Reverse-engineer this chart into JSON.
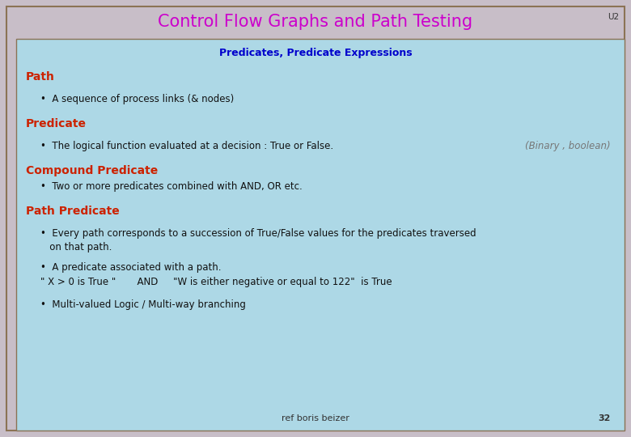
{
  "title": "Control Flow Graphs and Path Testing",
  "title_color": "#cc00cc",
  "title_fontsize": 15,
  "u2_label": "U2",
  "subtitle": "Predicates, Predicate Expressions",
  "subtitle_color": "#0000cc",
  "subtitle_fontsize": 9,
  "outer_bg": "#c8bec8",
  "inner_bg": "#add8e6",
  "border_color": "#8b7355",
  "header_bg": "#c8bec8",
  "sections": [
    {
      "heading": "Path",
      "heading_color": "#cc2200",
      "heading_fontsize": 10,
      "bullets": [
        {
          "text": "A sequence of process links (& nodes)",
          "right_text": "",
          "right_color": ""
        }
      ]
    },
    {
      "heading": "Predicate",
      "heading_color": "#cc2200",
      "heading_fontsize": 10,
      "bullets": [
        {
          "text": "The logical function evaluated at a decision : True or False.",
          "right_text": "(Binary , boolean)",
          "right_color": "#555555"
        }
      ]
    },
    {
      "heading": "Compound Predicate",
      "heading_color": "#cc2200",
      "heading_fontsize": 10,
      "bullets": [
        {
          "text": "Two or more predicates combined with AND, OR etc.",
          "right_text": "",
          "right_color": ""
        }
      ]
    },
    {
      "heading": "Path Predicate",
      "heading_color": "#cc2200",
      "heading_fontsize": 10,
      "bullets": [
        {
          "text": "Every path corresponds to a succession of True/False values for the predicates traversed\n   on that path.",
          "right_text": "",
          "right_color": ""
        },
        {
          "text": "A predicate associated with a path.",
          "right_text": "",
          "right_color": ""
        },
        {
          "text": "\" X > 0 is True \"       AND     \"W is either negative or equal to 122\"  is True",
          "right_text": "",
          "right_color": ""
        },
        {
          "text": "Multi-valued Logic / Multi-way branching",
          "right_text": "",
          "right_color": ""
        }
      ]
    }
  ],
  "footer_ref": "ref boris beizer",
  "footer_page": "32",
  "footer_color": "#333333",
  "footer_fontsize": 8,
  "bullet_fontsize": 8.5,
  "bullet_color": "#111111"
}
